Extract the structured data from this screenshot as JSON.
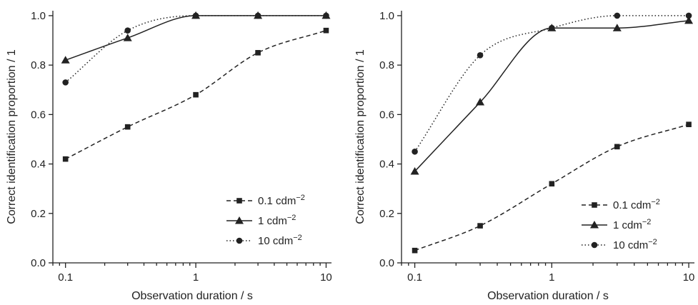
{
  "chart_data": [
    {
      "type": "line",
      "xlabel": "Observation duration / s",
      "ylabel": "Correct identification proportion / 1",
      "xscale": "log",
      "xlim": [
        0.08,
        11
      ],
      "ylim": [
        0.0,
        1.02
      ],
      "x_ticks": [
        0.1,
        1,
        10
      ],
      "x_tick_labels": [
        "0.1",
        "1",
        "10"
      ],
      "y_ticks": [
        0.0,
        0.2,
        0.4,
        0.6,
        0.8,
        1.0
      ],
      "y_tick_labels": [
        "0.0",
        "0.2",
        "0.4",
        "0.6",
        "0.8",
        "1.0"
      ],
      "legend_position": "bottom-right",
      "x": [
        0.1,
        0.3,
        1,
        3,
        10
      ],
      "series": [
        {
          "name": "0.1 cdm",
          "name_sup": "−2",
          "marker": "square",
          "line_style": "dashed",
          "values": [
            0.42,
            0.55,
            0.68,
            0.85,
            0.94
          ]
        },
        {
          "name": "1 cdm",
          "name_sup": "−2",
          "marker": "triangle",
          "line_style": "solid",
          "values": [
            0.82,
            0.91,
            1.0,
            1.0,
            1.0
          ]
        },
        {
          "name": "10 cdm",
          "name_sup": "−2",
          "marker": "circle",
          "line_style": "dotted",
          "values": [
            0.73,
            0.94,
            1.0,
            1.0,
            1.0
          ]
        }
      ]
    },
    {
      "type": "line",
      "xlabel": "Observation duration / s",
      "ylabel": "Correct identification proportion / 1",
      "xscale": "log",
      "xlim": [
        0.08,
        11
      ],
      "ylim": [
        0.0,
        1.02
      ],
      "x_ticks": [
        0.1,
        1,
        10
      ],
      "x_tick_labels": [
        "0.1",
        "1",
        "10"
      ],
      "y_ticks": [
        0.0,
        0.2,
        0.4,
        0.6,
        0.8,
        1.0
      ],
      "y_tick_labels": [
        "0.0",
        "0.2",
        "0.4",
        "0.6",
        "0.8",
        "1.0"
      ],
      "legend_position": "bottom-right",
      "x": [
        0.1,
        0.3,
        1,
        3,
        10
      ],
      "series": [
        {
          "name": "0.1 cdm",
          "name_sup": "−2",
          "marker": "square",
          "line_style": "dashed",
          "values": [
            0.05,
            0.15,
            0.32,
            0.47,
            0.56
          ]
        },
        {
          "name": "1 cdm",
          "name_sup": "−2",
          "marker": "triangle",
          "line_style": "solid",
          "values": [
            0.37,
            0.65,
            0.95,
            0.95,
            0.98
          ]
        },
        {
          "name": "10 cdm",
          "name_sup": "−2",
          "marker": "circle",
          "line_style": "dotted",
          "values": [
            0.45,
            0.84,
            0.95,
            1.0,
            1.0
          ]
        }
      ]
    }
  ]
}
